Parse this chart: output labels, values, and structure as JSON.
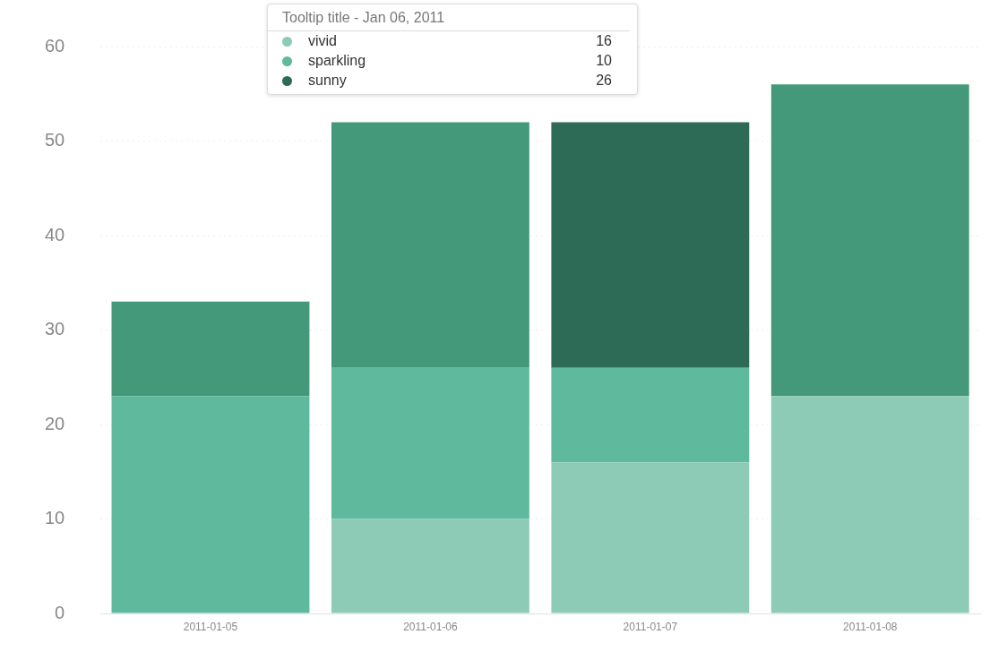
{
  "chart_data": {
    "type": "bar",
    "stacked": true,
    "categories": [
      "2011-01-05",
      "2011-01-06",
      "2011-01-07",
      "2011-01-08"
    ],
    "series": [
      {
        "name": "vivid",
        "color": "#8ecbb7",
        "values": [
          0,
          10,
          16,
          23
        ]
      },
      {
        "name": "sparkling",
        "color": "#5fb99d",
        "values": [
          23,
          16,
          10,
          0
        ]
      },
      {
        "name": "sunny",
        "color": "#2e6b57",
        "values": [
          0,
          0,
          26,
          0
        ]
      },
      {
        "color": "#43997a",
        "values": [
          10,
          26,
          0,
          33
        ]
      }
    ],
    "ylim": [
      0,
      60
    ],
    "yticks": [
      0,
      10,
      20,
      30,
      40,
      50,
      60
    ],
    "grid": "y",
    "legend": "top",
    "annotations": [
      "Tooltip title - Jan 06, 2011",
      "16",
      "10",
      "26"
    ]
  }
}
